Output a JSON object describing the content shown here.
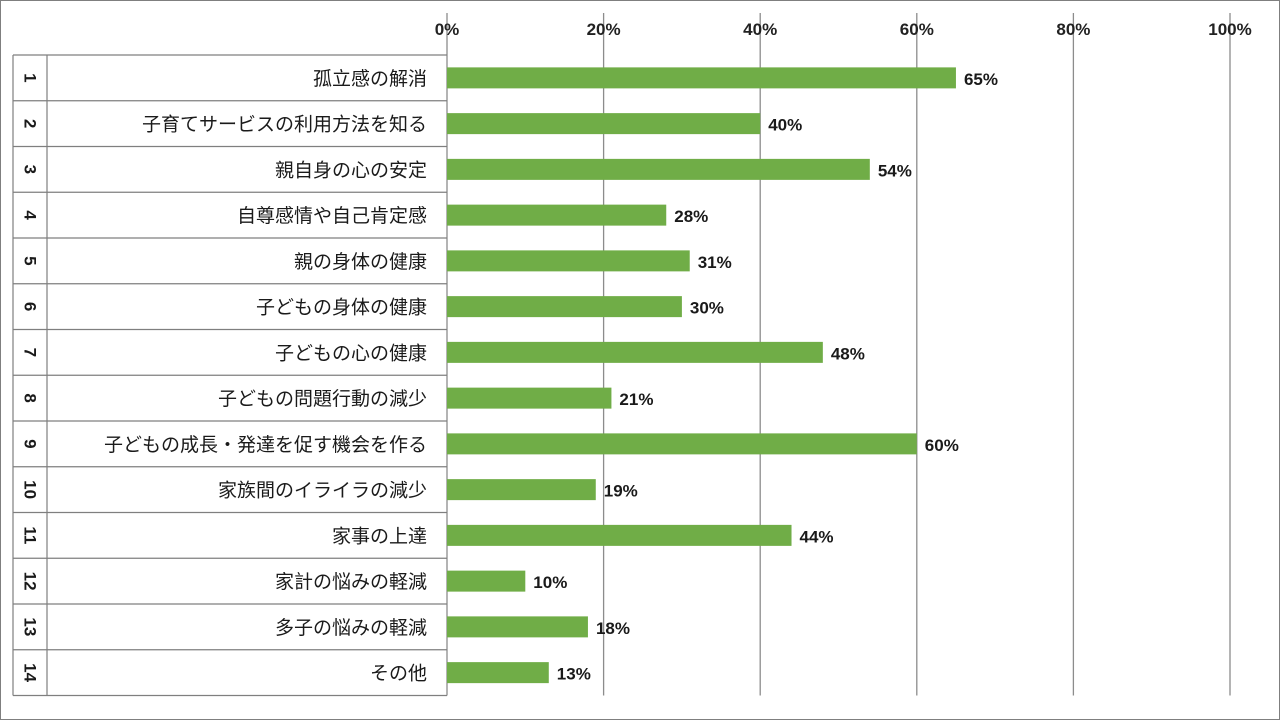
{
  "chart_data": {
    "type": "bar",
    "orientation": "horizontal",
    "numbers": [
      "1",
      "2",
      "3",
      "4",
      "5",
      "6",
      "7",
      "8",
      "9",
      "10",
      "11",
      "12",
      "13",
      "14"
    ],
    "categories": [
      "孤立感の解消",
      "子育てサービスの利用方法を知る",
      "親自身の心の安定",
      "自尊感情や自己肯定感",
      "親の身体の健康",
      "子どもの身体の健康",
      "子どもの心の健康",
      "子どもの問題行動の減少",
      "子どもの成長・発達を促す機会を作る",
      "家族間のイライラの減少",
      "家事の上達",
      "家計の悩みの軽減",
      "多子の悩みの軽減",
      "その他"
    ],
    "values": [
      65,
      40,
      54,
      28,
      31,
      30,
      48,
      21,
      60,
      19,
      44,
      10,
      18,
      13
    ],
    "value_labels": [
      "65%",
      "40%",
      "54%",
      "28%",
      "31%",
      "30%",
      "48%",
      "21%",
      "60%",
      "19%",
      "44%",
      "10%",
      "18%",
      "13%"
    ],
    "xlim": [
      0,
      100
    ],
    "x_ticks": [
      0,
      20,
      40,
      60,
      80,
      100
    ],
    "x_tick_labels": [
      "0%",
      "20%",
      "40%",
      "60%",
      "80%",
      "100%"
    ],
    "axis_position": "top",
    "grid": true,
    "bar_color": "#70ad47",
    "grid_color": "#8c8c8c",
    "border_color": "#7f7f7f"
  }
}
